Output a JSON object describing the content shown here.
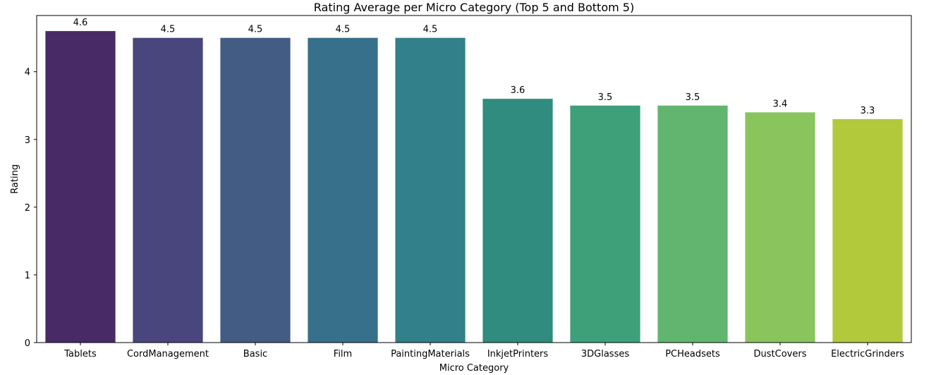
{
  "chart_data": {
    "type": "bar",
    "title": "Rating Average per Micro Category (Top 5 and Bottom 5)",
    "xlabel": "Micro Category",
    "ylabel": "Rating",
    "categories": [
      "Tablets",
      "CordManagement",
      "Basic",
      "Film",
      "PaintingMaterials",
      "InkjetPrinters",
      "3DGlasses",
      "PCHeadsets",
      "DustCovers",
      "ElectricGrinders"
    ],
    "values": [
      4.6,
      4.5,
      4.5,
      4.5,
      4.5,
      3.6,
      3.5,
      3.5,
      3.4,
      3.3
    ],
    "data_labels": [
      "4.6",
      "4.5",
      "4.5",
      "4.5",
      "4.5",
      "3.6",
      "3.5",
      "3.5",
      "3.4",
      "3.3"
    ],
    "colors": [
      "#482a67",
      "#48467c",
      "#425c84",
      "#36708a",
      "#31808a",
      "#2f8c7e",
      "#3da079",
      "#61b56f",
      "#8ac45d",
      "#b1c93b"
    ],
    "ylim": [
      0,
      4.83
    ],
    "yticks": [
      0,
      1,
      2,
      3,
      4
    ],
    "grid": false,
    "legend": "none"
  }
}
